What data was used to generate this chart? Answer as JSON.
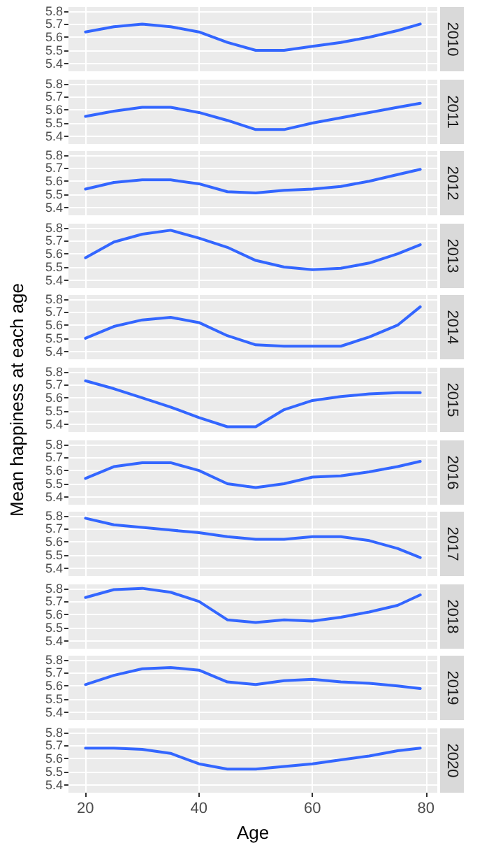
{
  "chart_data": [
    {
      "type": "line",
      "title": "2010",
      "x": [
        20,
        25,
        30,
        35,
        40,
        45,
        50,
        55,
        60,
        65,
        70,
        75,
        79
      ],
      "values": [
        5.64,
        5.68,
        5.7,
        5.68,
        5.64,
        5.56,
        5.5,
        5.5,
        5.53,
        5.56,
        5.6,
        5.65,
        5.7
      ],
      "color": "#3366ff",
      "xlim": [
        17,
        82
      ],
      "xticks": [
        20,
        40,
        60,
        80
      ],
      "ylim": [
        5.34,
        5.83
      ],
      "yticks": [
        5.4,
        5.5,
        5.6,
        5.7,
        5.8
      ],
      "grid": true,
      "marker": "none",
      "tick_labels": "y"
    },
    {
      "type": "line",
      "title": "2011",
      "x": [
        20,
        25,
        30,
        35,
        40,
        45,
        50,
        55,
        60,
        65,
        70,
        75,
        79
      ],
      "values": [
        5.55,
        5.59,
        5.62,
        5.62,
        5.58,
        5.52,
        5.45,
        5.45,
        5.5,
        5.54,
        5.58,
        5.62,
        5.65
      ],
      "color": "#3366ff",
      "xlim": [
        17,
        82
      ],
      "xticks": [
        20,
        40,
        60,
        80
      ],
      "ylim": [
        5.34,
        5.83
      ],
      "yticks": [
        5.4,
        5.5,
        5.6,
        5.7,
        5.8
      ],
      "grid": true,
      "marker": "none",
      "tick_labels": "y"
    },
    {
      "type": "line",
      "title": "2012",
      "x": [
        20,
        25,
        30,
        35,
        40,
        45,
        50,
        55,
        60,
        65,
        70,
        75,
        79
      ],
      "values": [
        5.54,
        5.59,
        5.61,
        5.61,
        5.58,
        5.52,
        5.51,
        5.53,
        5.54,
        5.56,
        5.6,
        5.65,
        5.69
      ],
      "color": "#3366ff",
      "xlim": [
        17,
        82
      ],
      "xticks": [
        20,
        40,
        60,
        80
      ],
      "ylim": [
        5.34,
        5.83
      ],
      "yticks": [
        5.4,
        5.5,
        5.6,
        5.7,
        5.8
      ],
      "grid": true,
      "marker": "none",
      "tick_labels": "y"
    },
    {
      "type": "line",
      "title": "2013",
      "x": [
        20,
        25,
        30,
        35,
        40,
        45,
        50,
        55,
        60,
        65,
        70,
        75,
        79
      ],
      "values": [
        5.57,
        5.69,
        5.75,
        5.78,
        5.72,
        5.65,
        5.55,
        5.5,
        5.48,
        5.49,
        5.53,
        5.6,
        5.67
      ],
      "color": "#3366ff",
      "xlim": [
        17,
        82
      ],
      "xticks": [
        20,
        40,
        60,
        80
      ],
      "ylim": [
        5.34,
        5.83
      ],
      "yticks": [
        5.4,
        5.5,
        5.6,
        5.7,
        5.8
      ],
      "grid": true,
      "marker": "none",
      "tick_labels": "y"
    },
    {
      "type": "line",
      "title": "2014",
      "x": [
        20,
        25,
        30,
        35,
        40,
        45,
        50,
        55,
        60,
        65,
        70,
        75,
        79
      ],
      "values": [
        5.5,
        5.59,
        5.64,
        5.66,
        5.62,
        5.52,
        5.45,
        5.44,
        5.44,
        5.44,
        5.51,
        5.6,
        5.74
      ],
      "color": "#3366ff",
      "xlim": [
        17,
        82
      ],
      "xticks": [
        20,
        40,
        60,
        80
      ],
      "ylim": [
        5.34,
        5.83
      ],
      "yticks": [
        5.4,
        5.5,
        5.6,
        5.7,
        5.8
      ],
      "grid": true,
      "marker": "none",
      "tick_labels": "y"
    },
    {
      "type": "line",
      "title": "2015",
      "ylabel": "Mean happiness at each age",
      "x": [
        20,
        25,
        30,
        35,
        40,
        45,
        50,
        55,
        60,
        65,
        70,
        75,
        79
      ],
      "values": [
        5.73,
        5.67,
        5.6,
        5.53,
        5.45,
        5.38,
        5.38,
        5.51,
        5.58,
        5.61,
        5.63,
        5.64,
        5.64
      ],
      "color": "#3366ff",
      "xlim": [
        17,
        82
      ],
      "xticks": [
        20,
        40,
        60,
        80
      ],
      "ylim": [
        5.34,
        5.83
      ],
      "yticks": [
        5.4,
        5.5,
        5.6,
        5.7,
        5.8
      ],
      "grid": true,
      "marker": "none",
      "tick_labels": "y"
    },
    {
      "type": "line",
      "title": "2016",
      "x": [
        20,
        25,
        30,
        35,
        40,
        45,
        50,
        55,
        60,
        65,
        70,
        75,
        79
      ],
      "values": [
        5.54,
        5.63,
        5.66,
        5.66,
        5.6,
        5.5,
        5.47,
        5.5,
        5.55,
        5.56,
        5.59,
        5.63,
        5.67
      ],
      "color": "#3366ff",
      "xlim": [
        17,
        82
      ],
      "xticks": [
        20,
        40,
        60,
        80
      ],
      "ylim": [
        5.34,
        5.83
      ],
      "yticks": [
        5.4,
        5.5,
        5.6,
        5.7,
        5.8
      ],
      "grid": true,
      "marker": "none",
      "tick_labels": "y"
    },
    {
      "type": "line",
      "title": "2017",
      "x": [
        20,
        25,
        30,
        35,
        40,
        45,
        50,
        55,
        60,
        65,
        70,
        75,
        79
      ],
      "values": [
        5.78,
        5.73,
        5.71,
        5.69,
        5.67,
        5.64,
        5.62,
        5.62,
        5.64,
        5.64,
        5.61,
        5.55,
        5.48
      ],
      "color": "#3366ff",
      "xlim": [
        17,
        82
      ],
      "xticks": [
        20,
        40,
        60,
        80
      ],
      "ylim": [
        5.34,
        5.83
      ],
      "yticks": [
        5.4,
        5.5,
        5.6,
        5.7,
        5.8
      ],
      "grid": true,
      "marker": "none",
      "tick_labels": "y"
    },
    {
      "type": "line",
      "title": "2018",
      "x": [
        20,
        25,
        30,
        35,
        40,
        45,
        50,
        55,
        60,
        65,
        70,
        75,
        79
      ],
      "values": [
        5.73,
        5.79,
        5.8,
        5.77,
        5.7,
        5.56,
        5.54,
        5.56,
        5.55,
        5.58,
        5.62,
        5.67,
        5.75
      ],
      "color": "#3366ff",
      "xlim": [
        17,
        82
      ],
      "xticks": [
        20,
        40,
        60,
        80
      ],
      "ylim": [
        5.34,
        5.83
      ],
      "yticks": [
        5.4,
        5.5,
        5.6,
        5.7,
        5.8
      ],
      "grid": true,
      "marker": "none",
      "tick_labels": "y"
    },
    {
      "type": "line",
      "title": "2019",
      "x": [
        20,
        25,
        30,
        35,
        40,
        45,
        50,
        55,
        60,
        65,
        70,
        75,
        79
      ],
      "values": [
        5.61,
        5.68,
        5.73,
        5.74,
        5.72,
        5.63,
        5.61,
        5.64,
        5.65,
        5.63,
        5.62,
        5.6,
        5.58
      ],
      "color": "#3366ff",
      "xlim": [
        17,
        82
      ],
      "xticks": [
        20,
        40,
        60,
        80
      ],
      "ylim": [
        5.34,
        5.83
      ],
      "yticks": [
        5.4,
        5.5,
        5.6,
        5.7,
        5.8
      ],
      "grid": true,
      "marker": "none",
      "tick_labels": "y"
    },
    {
      "type": "line",
      "title": "2020",
      "xlabel": "Age",
      "x": [
        20,
        25,
        30,
        35,
        40,
        45,
        50,
        55,
        60,
        65,
        70,
        75,
        79
      ],
      "values": [
        5.68,
        5.68,
        5.67,
        5.64,
        5.56,
        5.52,
        5.52,
        5.54,
        5.56,
        5.59,
        5.62,
        5.66,
        5.68
      ],
      "color": "#3366ff",
      "xlim": [
        17,
        82
      ],
      "xticks": [
        20,
        40,
        60,
        80
      ],
      "ylim": [
        5.34,
        5.83
      ],
      "yticks": [
        5.4,
        5.5,
        5.6,
        5.7,
        5.8
      ],
      "grid": true,
      "marker": "none"
    }
  ]
}
